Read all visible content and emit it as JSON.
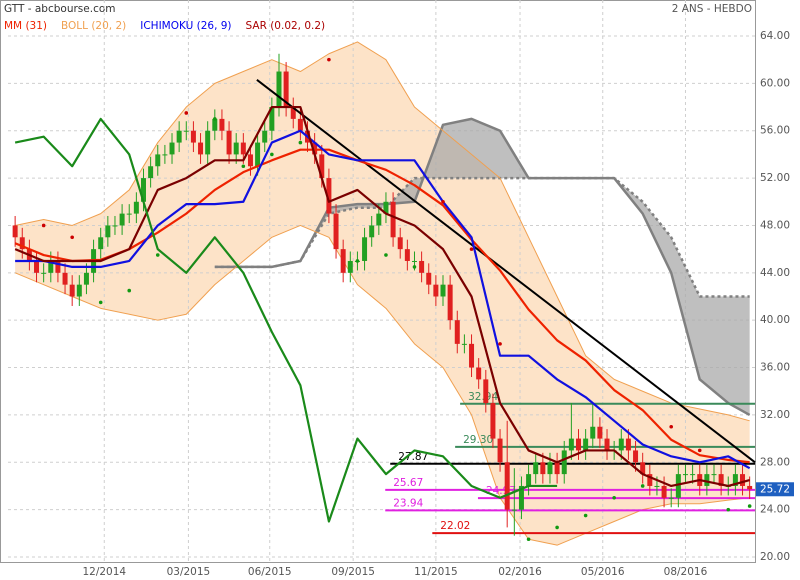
{
  "chart_data": {
    "type": "candlestick",
    "title": "GTT - abcbourse.com",
    "period": "2 ANS - HEBDO",
    "xlim": [
      -1,
      103.75
    ],
    "ylim": [
      20,
      64
    ],
    "xticks": [
      {
        "value": 12.5,
        "label": "12/2014"
      },
      {
        "value": 24.3,
        "label": "03/2015"
      },
      {
        "value": 35.7,
        "label": "06/2015"
      },
      {
        "value": 47.4,
        "label": "09/2015"
      },
      {
        "value": 59,
        "label": "11/2015"
      },
      {
        "value": 70.8,
        "label": "02/2016"
      },
      {
        "value": 82.4,
        "label": "05/2016"
      },
      {
        "value": 94,
        "label": "08/2016"
      }
    ],
    "yticks": [
      {
        "value": 20,
        "label": "20.00"
      },
      {
        "value": 24,
        "label": "24.00"
      },
      {
        "value": 28,
        "label": "28.00"
      },
      {
        "value": 32,
        "label": "32.00"
      },
      {
        "value": 36,
        "label": "36.00"
      },
      {
        "value": 40,
        "label": "40.00"
      },
      {
        "value": 44,
        "label": "44.00"
      },
      {
        "value": 48,
        "label": "48.00"
      },
      {
        "value": 52,
        "label": "52.00"
      },
      {
        "value": 56,
        "label": "56.00"
      },
      {
        "value": 60,
        "label": "60.00"
      },
      {
        "value": 64,
        "label": "64.00"
      }
    ],
    "grid": true,
    "up_color": "#22a022",
    "down_color": "#e02020",
    "candles": [
      [
        48,
        48.8,
        46.2,
        47
      ],
      [
        47,
        47.8,
        45.2,
        46
      ],
      [
        46,
        46.8,
        44.2,
        45
      ],
      [
        45,
        45.8,
        43.2,
        44
      ],
      [
        44,
        44.8,
        43.2,
        44
      ],
      [
        44,
        45.8,
        43.2,
        45
      ],
      [
        45,
        45.8,
        43.2,
        44
      ],
      [
        44,
        44.8,
        42.2,
        43
      ],
      [
        43,
        43.8,
        41.2,
        42
      ],
      [
        42,
        43.8,
        41.2,
        43
      ],
      [
        43,
        44.8,
        42.2,
        44
      ],
      [
        44,
        46.8,
        43.2,
        46
      ],
      [
        46,
        47.8,
        45.2,
        47
      ],
      [
        47,
        48.8,
        46.2,
        48
      ],
      [
        48,
        48.8,
        47.2,
        48
      ],
      [
        48,
        49.8,
        47.2,
        49
      ],
      [
        49,
        49.8,
        48.2,
        49
      ],
      [
        49,
        50.8,
        48.2,
        50
      ],
      [
        50,
        52.8,
        49.2,
        52
      ],
      [
        52,
        53.8,
        51.2,
        53
      ],
      [
        53,
        54.8,
        52.2,
        54
      ],
      [
        54,
        54.8,
        53.2,
        54
      ],
      [
        54,
        55.8,
        53.2,
        55
      ],
      [
        55,
        56.8,
        54.2,
        56
      ],
      [
        56,
        56.8,
        55.2,
        56
      ],
      [
        56,
        56.8,
        54.2,
        55
      ],
      [
        55,
        55.8,
        53.2,
        54
      ],
      [
        54,
        56.8,
        53.2,
        56
      ],
      [
        56,
        57.8,
        55.2,
        57
      ],
      [
        57,
        57.8,
        55.2,
        56
      ],
      [
        56,
        56.8,
        53.2,
        54
      ],
      [
        54,
        55.8,
        53.2,
        55
      ],
      [
        55,
        55.8,
        53.2,
        54
      ],
      [
        54,
        54.8,
        52.2,
        53
      ],
      [
        53,
        55.8,
        52.2,
        55
      ],
      [
        55,
        56.8,
        54.2,
        56
      ],
      [
        56,
        58.8,
        55.2,
        58
      ],
      [
        58,
        62.5,
        57.2,
        61
      ],
      [
        61,
        61.8,
        57.2,
        58
      ],
      [
        58,
        58.8,
        56.2,
        57
      ],
      [
        57,
        57.8,
        55.2,
        56
      ],
      [
        56,
        56.8,
        54.2,
        55
      ],
      [
        55,
        55.8,
        53.2,
        54
      ],
      [
        54,
        54.8,
        51.2,
        52
      ],
      [
        52,
        52.8,
        48.2,
        49
      ],
      [
        49,
        49.8,
        45.2,
        46
      ],
      [
        46,
        46.8,
        43.2,
        44
      ],
      [
        44,
        45.8,
        43.2,
        45
      ],
      [
        45,
        45.8,
        44.2,
        45
      ],
      [
        45,
        47.8,
        44.2,
        47
      ],
      [
        47,
        48.8,
        46.2,
        48
      ],
      [
        48,
        49.8,
        47.2,
        49
      ],
      [
        49,
        50.8,
        48.2,
        50
      ],
      [
        50,
        50.8,
        46.2,
        47
      ],
      [
        47,
        47.8,
        45.2,
        46
      ],
      [
        46,
        46.8,
        44.2,
        45
      ],
      [
        45,
        45.8,
        44.2,
        45
      ],
      [
        45,
        45.8,
        43.2,
        44
      ],
      [
        44,
        44.8,
        42.2,
        43
      ],
      [
        43,
        43.8,
        41.2,
        42
      ],
      [
        42,
        43.8,
        41.2,
        43
      ],
      [
        43,
        43.8,
        39.2,
        40
      ],
      [
        40,
        40.8,
        37.2,
        38
      ],
      [
        38,
        38.8,
        37.2,
        38
      ],
      [
        38,
        38.8,
        35.2,
        36
      ],
      [
        36,
        36.8,
        34.2,
        35
      ],
      [
        35,
        35.8,
        32.2,
        33
      ],
      [
        33,
        33.8,
        29.2,
        30
      ],
      [
        30,
        30.8,
        27.2,
        28
      ],
      [
        28,
        31.5,
        22.5,
        24
      ],
      [
        24,
        27.5,
        21.8,
        24
      ],
      [
        24,
        26.8,
        23.2,
        26
      ],
      [
        26,
        27.8,
        25.2,
        27
      ],
      [
        27,
        28.8,
        26.2,
        28
      ],
      [
        28,
        28.8,
        26.2,
        27
      ],
      [
        27,
        28.8,
        26.2,
        28
      ],
      [
        28,
        28.8,
        26.2,
        27
      ],
      [
        27,
        29.8,
        26.2,
        29
      ],
      [
        29,
        33,
        28.2,
        30
      ],
      [
        30,
        30.8,
        28.2,
        29
      ],
      [
        29,
        30.8,
        28.2,
        30
      ],
      [
        30,
        33,
        29.2,
        31
      ],
      [
        31,
        31.8,
        29.2,
        30
      ],
      [
        30,
        30.8,
        28.2,
        29
      ],
      [
        29,
        29.8,
        28.2,
        29
      ],
      [
        29,
        30.8,
        28.2,
        30
      ],
      [
        30,
        30.8,
        28.2,
        29
      ],
      [
        29,
        29.8,
        27.2,
        28
      ],
      [
        28,
        28.8,
        26.2,
        27
      ],
      [
        27,
        27.8,
        25.2,
        26
      ],
      [
        26,
        26.8,
        25.2,
        26
      ],
      [
        26,
        26.8,
        24.2,
        25
      ],
      [
        25,
        25.8,
        24.2,
        25
      ],
      [
        25,
        27.8,
        24.2,
        27
      ],
      [
        27,
        27.8,
        26.2,
        27
      ],
      [
        27,
        27.8,
        26.2,
        27
      ],
      [
        27,
        27.8,
        25.2,
        26
      ],
      [
        26,
        27.8,
        25.2,
        27
      ],
      [
        27,
        27.8,
        26.2,
        27
      ],
      [
        27,
        27.8,
        25.2,
        26
      ],
      [
        26,
        26.8,
        25.2,
        26
      ],
      [
        26,
        27.8,
        25.2,
        27
      ],
      [
        27,
        27.8,
        25.2,
        26
      ],
      [
        26,
        26.8,
        24.9,
        25.72
      ]
    ],
    "x": [
      0,
      4,
      8,
      12,
      16,
      20,
      24,
      28,
      32,
      36,
      40,
      44,
      48,
      52,
      56,
      60,
      64,
      68,
      72,
      76,
      80,
      84,
      88,
      92,
      96,
      100,
      103
    ],
    "series": [
      {
        "name": "MM (31)",
        "color": "#ee2200",
        "lines": [
          {
            "color": "#ee2200",
            "values": [
              46.5,
              45.5,
              45,
              45.1,
              46,
              47.4,
              49,
              51,
              52.5,
              53.5,
              54.4,
              54.4,
              53.5,
              52.7,
              51.4,
              49.7,
              46.8,
              44.2,
              40.9,
              38.3,
              36.6,
              34.1,
              32.4,
              29.9,
              28.6,
              28.2,
              28
            ]
          }
        ]
      },
      {
        "name": "BOLL (20, 2)",
        "color": "#f0a050",
        "fill": "#fde3c8",
        "band": {
          "upper": [
            48,
            48.5,
            48,
            49,
            51,
            55,
            58,
            60,
            61,
            62,
            61,
            62.5,
            63.5,
            62,
            58,
            56,
            54,
            52,
            47,
            42,
            37,
            35,
            34,
            33,
            32.5,
            32,
            31.5
          ],
          "lower": [
            44,
            43,
            42,
            41,
            40.5,
            40,
            40.5,
            43,
            45,
            47,
            48,
            47,
            43,
            41,
            38,
            36,
            32,
            25,
            21.5,
            21,
            22,
            23,
            24,
            24.5,
            24.5,
            24.8,
            25
          ]
        }
      },
      {
        "name": "ICHIMOKU (26, 9)",
        "color": "#0000ee",
        "lines": [
          {
            "color": "#1010e0",
            "values": [
              45,
              45,
              44.5,
              44.5,
              45,
              48,
              49.8,
              49.8,
              50,
              55,
              56,
              54,
              53.5,
              53.5,
              53.5,
              50,
              47,
              37,
              37,
              35,
              33.5,
              31.5,
              29.5,
              28.5,
              28,
              28.5,
              27.5
            ]
          },
          {
            "color": "#7a0000",
            "values": [
              46,
              45,
              45,
              45,
              46,
              51,
              52,
              53.5,
              53.5,
              58,
              58,
              50,
              51,
              49,
              48,
              46,
              42,
              33,
              29,
              28,
              29,
              29,
              27,
              26,
              26.5,
              26,
              26.5
            ]
          },
          {
            "color": "#1a8a1a",
            "values": [
              55,
              55.5,
              53,
              57,
              54,
              46,
              44,
              47,
              44,
              39,
              34.5,
              23,
              30,
              27,
              29,
              28.5,
              26,
              25,
              26,
              26,
              null,
              null,
              null,
              null,
              null,
              null,
              null
            ]
          }
        ],
        "cloud": {
          "fill": "#aaaaaa",
          "line": "#808080",
          "a": [
            null,
            null,
            null,
            null,
            null,
            null,
            null,
            44.5,
            44.5,
            44.5,
            45,
            49.5,
            49.8,
            49.8,
            50,
            56.5,
            57,
            56,
            52,
            52,
            52,
            52,
            49,
            44,
            35,
            33,
            32
          ],
          "b": [
            null,
            null,
            null,
            null,
            null,
            null,
            null,
            44.5,
            44.5,
            44.5,
            45,
            49,
            49.5,
            49.5,
            52,
            52,
            52,
            52,
            52,
            52,
            52,
            52,
            50,
            47,
            42,
            42,
            42
          ]
        }
      },
      {
        "name": "SAR (0.02, 0.2)",
        "color": "#aa0000",
        "above_color": "#cc0000",
        "below_color": "#119911",
        "dots": [
          null,
          48,
          47,
          41.5,
          42.5,
          45.5,
          57.5,
          57,
          53,
          54,
          55,
          62,
          45,
          45.5,
          44.5,
          50,
          46,
          38,
          21.5,
          22.5,
          23.5,
          25,
          26,
          31,
          29,
          24,
          24.3
        ]
      }
    ],
    "trendline": {
      "color": "#000000",
      "x": [
        33.9,
        103.75
      ],
      "values": [
        60.3,
        28
      ]
    },
    "levels": [
      {
        "value": 32.94,
        "color": "#3a8a5a",
        "from": 62.4
      },
      {
        "value": 29.3,
        "label": "29.30",
        "color": "#3a8a5a",
        "from": 61.7
      },
      {
        "value": 27.87,
        "color": "#000000",
        "from": 52.6
      },
      {
        "value": 25.67,
        "color": "#e020e0",
        "from": 51.9
      },
      {
        "value": 24.97,
        "color": "#e020e0",
        "from": 64.9
      },
      {
        "value": 23.94,
        "color": "#e020e0",
        "from": 51.9
      },
      {
        "value": 22.02,
        "color": "#e01010",
        "from": 58.5
      }
    ],
    "last_price": 25.72,
    "last_color": "#1e5fc0"
  }
}
